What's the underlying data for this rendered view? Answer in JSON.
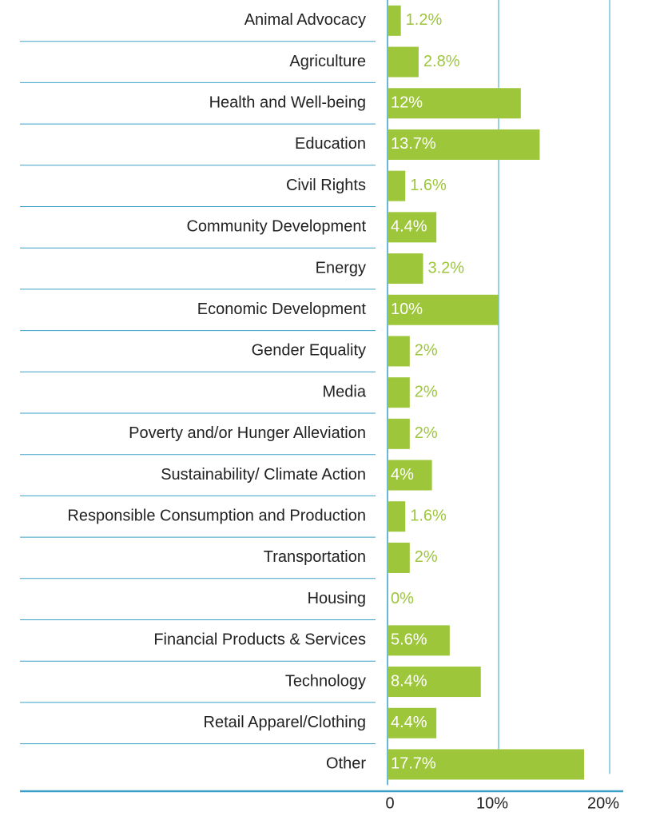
{
  "chart_data": {
    "type": "barh",
    "categories": [
      "Animal Advocacy",
      "Agriculture",
      "Health and Well-being",
      "Education",
      "Civil Rights",
      "Community Development",
      "Energy",
      "Economic Development",
      "Gender Equality",
      "Media",
      "Poverty and/or Hunger Alleviation",
      "Sustainability/ Climate Action",
      "Responsible Consumption and Production",
      "Transportation",
      "Housing",
      "Financial Products & Services",
      "Technology",
      "Retail Apparel/Clothing",
      "Other"
    ],
    "values": [
      1.2,
      2.8,
      12,
      13.7,
      1.6,
      4.4,
      3.2,
      10,
      2,
      2,
      2,
      4,
      1.6,
      2,
      0,
      5.6,
      8.4,
      4.4,
      17.7
    ],
    "value_labels": [
      "1.2%",
      "2.8%",
      "12%",
      "13.7%",
      "1.6%",
      "4.4%",
      "3.2%",
      "10%",
      "2%",
      "2%",
      "2%",
      "4%",
      "1.6%",
      "2%",
      "0%",
      "5.6%",
      "8.4%",
      "4.4%",
      "17.7%"
    ],
    "color": "#9dc63b",
    "xlim": [
      0,
      20
    ],
    "xticks": [
      0,
      {
        "value": 10,
        "label": "10%"
      },
      {
        "value": 20,
        "label": "20%"
      }
    ],
    "grid": true
  }
}
